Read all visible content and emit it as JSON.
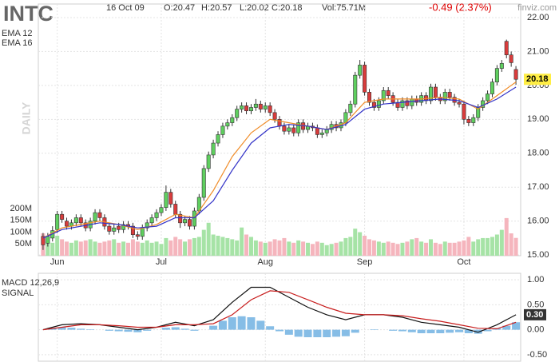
{
  "header": {
    "symbol": "INTC",
    "date": "16 Oct 09",
    "open": "O:20.47",
    "high": "H:20.57",
    "low": "L:20.02",
    "close": "C:20.18",
    "volume": "Vol:75.71M",
    "change": "-0.49 (2.37%)",
    "logo": "finviz.com",
    "watermark": "DAILY"
  },
  "chart_data": [
    {
      "type": "candlestick",
      "up_color": "#5fcf5f",
      "down_color": "#d93c3c",
      "xlim": [
        -1,
        101
      ],
      "ylim": [
        14.98,
        22.4
      ],
      "grid": true,
      "xticks": [
        {
          "value": 3,
          "label": "Jun"
        },
        {
          "value": 25,
          "label": "Jul"
        },
        {
          "value": 47,
          "label": "Aug"
        },
        {
          "value": 68,
          "label": "Sep"
        },
        {
          "value": 89,
          "label": "Oct"
        }
      ],
      "yticks": [
        {
          "value": 15,
          "label": "15.00"
        },
        {
          "value": 16,
          "label": "16.00"
        },
        {
          "value": 17,
          "label": "17.00"
        },
        {
          "value": 18,
          "label": "18.00"
        },
        {
          "value": 19,
          "label": "19.00"
        },
        {
          "value": 20,
          "label": "20.00"
        },
        {
          "value": 21,
          "label": "21.00"
        },
        {
          "value": 22,
          "label": "22.00"
        }
      ],
      "last_label": "20.18",
      "open": [
        15.55,
        15.35,
        15.5,
        15.75,
        16.2,
        16,
        15.85,
        15.95,
        16.1,
        15.95,
        15.8,
        16,
        16.25,
        16.1,
        15.85,
        15.7,
        15.85,
        15.75,
        15.9,
        15.85,
        15.6,
        15.55,
        15.8,
        15.95,
        16.1,
        16.25,
        16.4,
        16.85,
        16.5,
        16.2,
        15.95,
        16.05,
        15.85,
        16.3,
        16.7,
        17.55,
        17.95,
        18.3,
        18.55,
        18.8,
        18.9,
        19.05,
        19.3,
        19.4,
        19.25,
        19.35,
        19.45,
        19.3,
        19.4,
        19.2,
        19,
        18.8,
        18.65,
        18.75,
        18.6,
        18.9,
        18.7,
        18.8,
        18.75,
        18.55,
        18.6,
        18.7,
        18.85,
        18.75,
        18.9,
        19.2,
        19.45,
        20.3,
        20.6,
        19.8,
        19.5,
        19.35,
        19.55,
        19.85,
        19.7,
        19.5,
        19.35,
        19.55,
        19.4,
        19.6,
        19.5,
        19.7,
        19.55,
        19.95,
        19.65,
        19.55,
        19.8,
        19.65,
        19.5,
        19.45,
        19,
        18.9,
        19.05,
        19.35,
        19.55,
        19.75,
        20.1,
        20.5,
        21.3,
        20.9,
        20.47
      ],
      "high": [
        15.65,
        15.65,
        15.85,
        16.3,
        16.3,
        16.1,
        16.05,
        16.2,
        16.2,
        16.05,
        16.1,
        16.35,
        16.35,
        16.2,
        15.95,
        15.9,
        15.95,
        16,
        16,
        15.95,
        15.7,
        15.9,
        16.05,
        16.2,
        16.35,
        16.5,
        17.05,
        16.95,
        16.6,
        16.3,
        16.15,
        16.15,
        16.4,
        16.8,
        17.65,
        18.05,
        18.4,
        18.65,
        18.9,
        19,
        19.15,
        19.4,
        19.5,
        19.5,
        19.45,
        19.6,
        19.55,
        19.5,
        19.5,
        19.3,
        19.1,
        18.9,
        18.85,
        18.85,
        19,
        19,
        18.9,
        18.9,
        18.85,
        18.7,
        18.8,
        18.95,
        18.95,
        19,
        19.3,
        19.55,
        20.4,
        20.75,
        20.7,
        19.9,
        19.6,
        19.65,
        19.95,
        19.95,
        19.8,
        19.6,
        19.65,
        19.65,
        19.7,
        19.7,
        19.8,
        19.8,
        20.05,
        20.05,
        19.75,
        19.9,
        19.9,
        19.75,
        19.6,
        19.55,
        19.1,
        19.15,
        19.45,
        19.65,
        19.85,
        20.2,
        20.6,
        20.75,
        21.35,
        21,
        20.57
      ],
      "low": [
        15.15,
        15.25,
        15.4,
        15.65,
        15.95,
        15.75,
        15.75,
        15.85,
        15.85,
        15.7,
        15.7,
        15.9,
        16,
        15.75,
        15.6,
        15.6,
        15.65,
        15.65,
        15.75,
        15.5,
        15.45,
        15.45,
        15.7,
        15.85,
        16,
        16.15,
        16.3,
        16.4,
        16.1,
        15.8,
        15.85,
        15.75,
        15.75,
        16.2,
        16.6,
        17.45,
        17.85,
        18.2,
        18.45,
        18.7,
        18.8,
        18.95,
        19.2,
        19.15,
        19.15,
        19.25,
        19.2,
        19.2,
        19.1,
        18.9,
        18.7,
        18.55,
        18.55,
        18.5,
        18.5,
        18.6,
        18.6,
        18.65,
        18.45,
        18.45,
        18.5,
        18.6,
        18.65,
        18.65,
        18.8,
        19.1,
        19.35,
        20.2,
        19.7,
        19.4,
        19.25,
        19.25,
        19.45,
        19.6,
        19.4,
        19.25,
        19.25,
        19.3,
        19.3,
        19.4,
        19.4,
        19.45,
        19.45,
        19.55,
        19.45,
        19.45,
        19.55,
        19.4,
        19.35,
        18.85,
        18.8,
        18.8,
        18.95,
        19.25,
        19.45,
        19.65,
        20,
        20.4,
        20.8,
        20.55,
        20.02
      ],
      "close": [
        15.3,
        15.55,
        15.72,
        16.2,
        16.05,
        15.85,
        15.95,
        16.1,
        15.95,
        15.8,
        16,
        16.25,
        16.1,
        15.85,
        15.7,
        15.8,
        15.75,
        15.9,
        15.85,
        15.6,
        15.55,
        15.8,
        15.95,
        16.1,
        16.25,
        16.4,
        16.85,
        16.5,
        16.2,
        15.95,
        16.05,
        15.85,
        16.3,
        16.7,
        17.55,
        17.95,
        18.3,
        18.55,
        18.8,
        18.9,
        19.05,
        19.3,
        19.4,
        19.25,
        19.35,
        19.45,
        19.3,
        19.4,
        19.2,
        19,
        18.8,
        18.65,
        18.75,
        18.6,
        18.9,
        18.7,
        18.8,
        18.75,
        18.55,
        18.6,
        18.7,
        18.85,
        18.75,
        18.9,
        19.2,
        19.45,
        20.3,
        20.6,
        19.8,
        19.5,
        19.35,
        19.55,
        19.85,
        19.7,
        19.5,
        19.35,
        19.55,
        19.4,
        19.6,
        19.5,
        19.7,
        19.55,
        19.95,
        19.65,
        19.55,
        19.8,
        19.65,
        19.5,
        19.45,
        19,
        18.9,
        19.05,
        19.35,
        19.55,
        19.75,
        20.1,
        20.5,
        20.65,
        20.9,
        20.67,
        20.18
      ],
      "series": [
        {
          "name": "EMA 12",
          "color": "#f08c28",
          "x": [
            0,
            4,
            8,
            12,
            16,
            20,
            24,
            28,
            32,
            36,
            40,
            44,
            48,
            52,
            56,
            60,
            64,
            68,
            72,
            76,
            80,
            84,
            88,
            92,
            96,
            100
          ],
          "values": [
            15.5,
            15.8,
            15.9,
            16,
            15.9,
            15.75,
            15.9,
            16.2,
            16.1,
            16.9,
            17.9,
            18.6,
            19,
            18.9,
            18.8,
            18.7,
            18.9,
            19.5,
            19.6,
            19.6,
            19.6,
            19.65,
            19.6,
            19.3,
            19.7,
            20.1
          ]
        },
        {
          "name": "EMA 16",
          "color": "#3535c8",
          "x": [
            0,
            4,
            8,
            12,
            16,
            20,
            24,
            28,
            32,
            36,
            40,
            44,
            48,
            52,
            56,
            60,
            64,
            68,
            72,
            76,
            80,
            84,
            88,
            92,
            96,
            100
          ],
          "values": [
            15.5,
            15.75,
            15.85,
            15.95,
            15.9,
            15.8,
            15.85,
            16.1,
            16.1,
            16.6,
            17.5,
            18.3,
            18.75,
            18.85,
            18.8,
            18.7,
            18.85,
            19.3,
            19.45,
            19.5,
            19.55,
            19.6,
            19.55,
            19.35,
            19.6,
            19.95
          ]
        }
      ]
    },
    {
      "type": "bar",
      "up_color": "#a6e3a6",
      "down_color": "#f5b5bd",
      "ylim": [
        0,
        1070
      ],
      "yticks": [
        {
          "value": 50,
          "label": "50M"
        },
        {
          "value": 100,
          "label": "100M"
        },
        {
          "value": 150,
          "label": "150M"
        },
        {
          "value": 200,
          "label": "200M"
        }
      ],
      "values": [
        95,
        60,
        55,
        85,
        70,
        60,
        55,
        65,
        60,
        65,
        70,
        60,
        55,
        60,
        65,
        70,
        55,
        60,
        55,
        70,
        60,
        55,
        65,
        55,
        60,
        50,
        75,
        65,
        80,
        70,
        60,
        70,
        75,
        80,
        110,
        140,
        90,
        85,
        80,
        75,
        70,
        65,
        120,
        90,
        80,
        65,
        60,
        55,
        60,
        70,
        65,
        75,
        60,
        55,
        65,
        60,
        55,
        50,
        60,
        55,
        45,
        50,
        55,
        60,
        75,
        80,
        115,
        100,
        85,
        70,
        65,
        60,
        55,
        60,
        55,
        50,
        55,
        60,
        70,
        75,
        60,
        55,
        70,
        55,
        50,
        60,
        55,
        55,
        60,
        65,
        80,
        60,
        70,
        75,
        75,
        80,
        90,
        110,
        160,
        95,
        75.71
      ]
    },
    {
      "type": "line",
      "ylim": [
        -0.63,
        1.13
      ],
      "grid": true,
      "last_label": "0.30",
      "yticks": [
        {
          "value": -0.5,
          "label": "-0.50"
        },
        {
          "value": 0,
          "label": "0.00"
        },
        {
          "value": 0.5,
          "label": "0.50"
        },
        {
          "value": 1,
          "label": "1.00"
        }
      ],
      "series": [
        {
          "name": "MACD 12,26,9",
          "color": "#111111",
          "x": [
            0,
            4,
            8,
            12,
            16,
            20,
            24,
            28,
            32,
            36,
            40,
            44,
            48,
            52,
            56,
            60,
            64,
            68,
            72,
            76,
            80,
            84,
            88,
            92,
            96,
            100
          ],
          "values": [
            0,
            0.1,
            0.12,
            0.1,
            0.05,
            0,
            0.05,
            0.15,
            0.08,
            0.2,
            0.55,
            0.85,
            0.85,
            0.65,
            0.45,
            0.3,
            0.2,
            0.3,
            0.3,
            0.25,
            0.15,
            0.1,
            0.05,
            -0.05,
            0.1,
            0.3
          ]
        },
        {
          "name": "SIGNAL",
          "color": "#c81e1e",
          "x": [
            0,
            4,
            8,
            12,
            16,
            20,
            24,
            28,
            32,
            36,
            40,
            44,
            48,
            52,
            56,
            60,
            64,
            68,
            72,
            76,
            80,
            84,
            88,
            92,
            96,
            100
          ],
          "values": [
            0,
            0.05,
            0.1,
            0.1,
            0.08,
            0.05,
            0.05,
            0.1,
            0.1,
            0.12,
            0.3,
            0.6,
            0.78,
            0.75,
            0.6,
            0.45,
            0.33,
            0.3,
            0.3,
            0.28,
            0.22,
            0.17,
            0.1,
            0.03,
            0.02,
            0.15
          ]
        }
      ],
      "histogram": {
        "color": "#86bde6",
        "x": [
          0,
          2,
          4,
          6,
          8,
          10,
          12,
          14,
          16,
          18,
          20,
          22,
          24,
          26,
          28,
          30,
          32,
          34,
          36,
          38,
          40,
          42,
          44,
          46,
          48,
          50,
          52,
          54,
          56,
          58,
          60,
          62,
          64,
          66,
          68,
          70,
          72,
          74,
          76,
          78,
          80,
          82,
          84,
          86,
          88,
          90,
          92,
          94,
          96,
          98,
          100
        ],
        "values": [
          0,
          0.03,
          0.05,
          0.04,
          0.02,
          0.01,
          0,
          -0.02,
          -0.03,
          -0.04,
          -0.05,
          -0.02,
          0,
          0.04,
          0.05,
          0.02,
          -0.02,
          0,
          0.08,
          0.18,
          0.25,
          0.27,
          0.25,
          0.18,
          0.07,
          -0.03,
          -0.1,
          -0.14,
          -0.15,
          -0.15,
          -0.15,
          -0.14,
          -0.13,
          -0.06,
          0,
          0.01,
          0,
          -0.02,
          -0.03,
          -0.05,
          -0.07,
          -0.07,
          -0.07,
          -0.06,
          -0.05,
          -0.07,
          -0.08,
          -0.03,
          0.03,
          0.08,
          0.15
        ]
      }
    }
  ]
}
